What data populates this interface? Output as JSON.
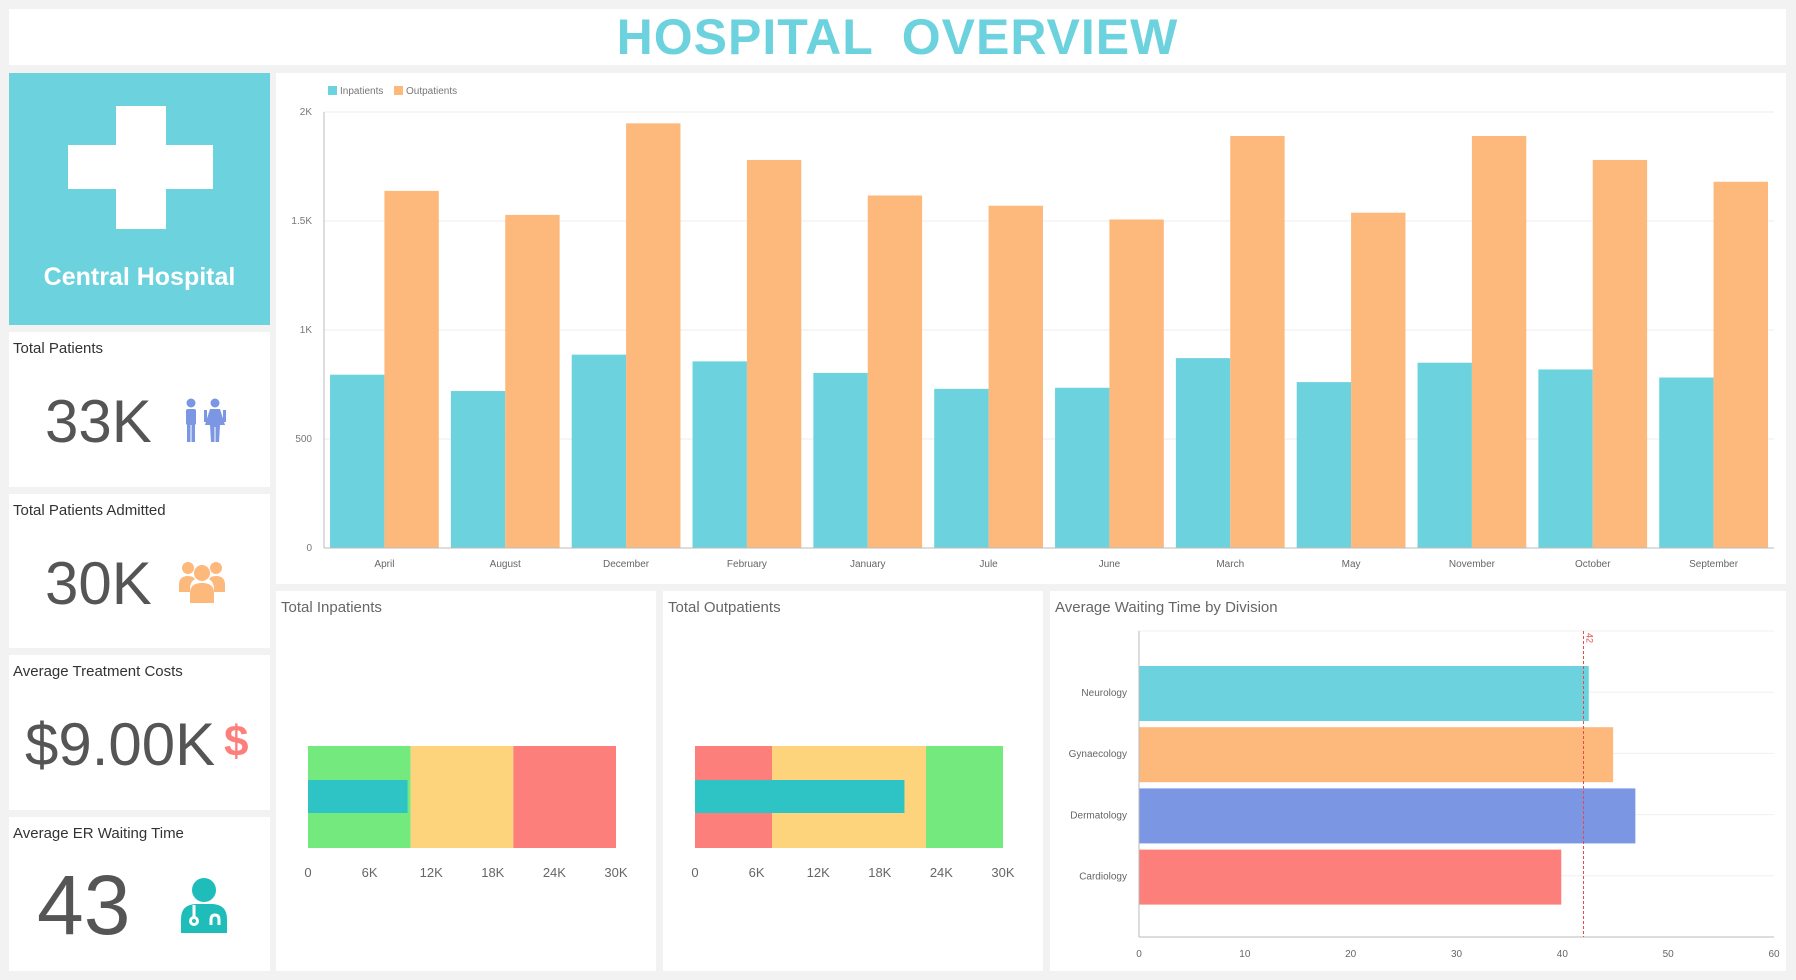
{
  "title": "HOSPITAL  OVERVIEW",
  "hospital": {
    "name": "Central Hospital",
    "icon": "medical-cross-icon"
  },
  "kpis": [
    {
      "label": "Total Patients",
      "value": "33K",
      "icon": "male-female-icon",
      "color": "#7b96e2"
    },
    {
      "label": "Total Patients Admitted",
      "value": "30K",
      "icon": "group-icon",
      "color": "#fdb87b"
    },
    {
      "label": "Average Treatment Costs",
      "value": "$9.00K",
      "icon": "dollar-icon",
      "color": "#fd7f7b"
    },
    {
      "label": "Average ER Waiting Time",
      "value": "43",
      "icon": "doctor-icon",
      "color": "#1fbdb9"
    }
  ],
  "colors": {
    "accent": "#6cd2de",
    "inpatients": "#6cd2de",
    "outpatients": "#fdb87b"
  },
  "chart_data": [
    {
      "type": "bar",
      "legend": "top-left",
      "grid": true,
      "categories": [
        "April",
        "August",
        "December",
        "February",
        "January",
        "Jule",
        "June",
        "March",
        "May",
        "November",
        "October",
        "September"
      ],
      "series": [
        {
          "name": "Inpatients",
          "color": "#6cd2de",
          "values": [
            795,
            720,
            887,
            856,
            803,
            730,
            735,
            871,
            761,
            850,
            819,
            782
          ]
        },
        {
          "name": "Outpatients",
          "color": "#fdb87b",
          "values": [
            1638,
            1528,
            1948,
            1780,
            1617,
            1570,
            1507,
            1890,
            1538,
            1890,
            1780,
            1680
          ]
        }
      ],
      "ylim": [
        0,
        2000
      ],
      "yticks": [
        "0",
        "500",
        "1K",
        "1.5K",
        "2K"
      ],
      "ytick_values": [
        0,
        500,
        1000,
        1500,
        2000
      ]
    },
    {
      "type": "bullet",
      "title": "Total Inpatients",
      "value": 9700,
      "xlim": [
        0,
        30000
      ],
      "bands": [
        {
          "to": 10000,
          "color": "#74ea7e"
        },
        {
          "to": 20000,
          "color": "#fdd37b"
        },
        {
          "to": 30000,
          "color": "#fd7f7b"
        }
      ],
      "bar_color": "#2ec4c6",
      "xticks": [
        "0",
        "6K",
        "12K",
        "18K",
        "24K",
        "30K"
      ]
    },
    {
      "type": "bullet",
      "title": "Total Outpatients",
      "value": 20400,
      "xlim": [
        0,
        30000
      ],
      "bands": [
        {
          "to": 7500,
          "color": "#fd7f7b"
        },
        {
          "to": 22500,
          "color": "#fdd37b"
        },
        {
          "to": 30000,
          "color": "#74ea7e"
        }
      ],
      "bar_color": "#2ec4c6",
      "xticks": [
        "0",
        "6K",
        "12K",
        "18K",
        "24K",
        "30K"
      ]
    },
    {
      "type": "bar",
      "orientation": "horizontal",
      "title": "Average Waiting Time by Division",
      "categories": [
        "Neurology",
        "Gynaecology",
        "Dermatology",
        "Cardiology"
      ],
      "values": [
        42.5,
        44.8,
        46.9,
        39.9
      ],
      "colors": [
        "#6cd2de",
        "#fdb87b",
        "#7b96e2",
        "#fd7f7b"
      ],
      "xlim": [
        0,
        60
      ],
      "xticks": [
        "0",
        "10",
        "20",
        "30",
        "40",
        "50",
        "60"
      ],
      "target": {
        "value": 42,
        "label": "42",
        "color": "#e84a4a"
      }
    }
  ]
}
